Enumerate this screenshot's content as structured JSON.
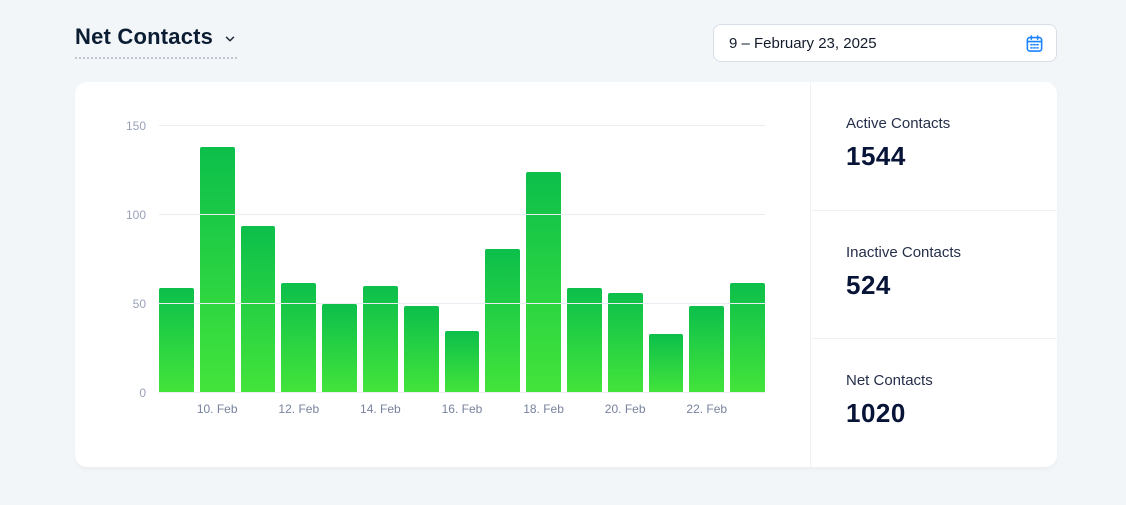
{
  "header": {
    "title": "Net Contacts",
    "date_range": "9 – February 23, 2025"
  },
  "stats": [
    {
      "label": "Active Contacts",
      "value": "1544"
    },
    {
      "label": "Inactive Contacts",
      "value": "524"
    },
    {
      "label": "Net Contacts",
      "value": "1020"
    }
  ],
  "chart_data": {
    "type": "bar",
    "title": "Net Contacts",
    "x": [
      "9 Feb",
      "10 Feb",
      "11 Feb",
      "12 Feb",
      "13 Feb",
      "14 Feb",
      "15 Feb",
      "16 Feb",
      "17 Feb",
      "18 Feb",
      "19 Feb",
      "20 Feb",
      "21 Feb",
      "22 Feb",
      "23 Feb"
    ],
    "values": [
      59,
      138,
      94,
      62,
      50,
      60,
      49,
      35,
      81,
      124,
      59,
      56,
      33,
      49,
      62
    ],
    "x_tick_labels": [
      "",
      "10. Feb",
      "",
      "12. Feb",
      "",
      "14. Feb",
      "",
      "16. Feb",
      "",
      "18. Feb",
      "",
      "20. Feb",
      "",
      "22. Feb",
      ""
    ],
    "y_ticks": [
      0,
      50,
      100,
      150
    ],
    "ylim": [
      0,
      150
    ],
    "grid": "horizontal",
    "legend": "none",
    "bar_color_top": "#0cbf4b",
    "bar_color_bottom": "#43e43a"
  },
  "colors": {
    "accent_blue": "#1b84ff",
    "bar_green_top": "#0cbf4b",
    "bar_green_bottom": "#43e43a",
    "page_background": "#f3f6f9"
  }
}
